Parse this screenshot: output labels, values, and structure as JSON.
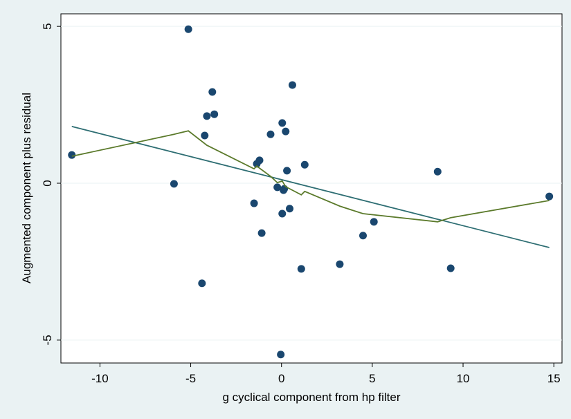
{
  "chart_data": {
    "type": "scatter",
    "x_label": "g cyclical component from hp filter",
    "y_label": "Augmented component plus residual",
    "xlim": [
      -12.15,
      15.45
    ],
    "ylim": [
      -5.73,
      5.4
    ],
    "xticks": [
      -10,
      -5,
      0,
      5,
      10,
      15
    ],
    "yticks": [
      -5,
      0,
      5
    ],
    "grid": true,
    "series": [
      {
        "mode": "markers",
        "color": "#1a476f",
        "x": [
          -11.55,
          -5.92,
          -5.13,
          -4.38,
          -4.23,
          -4.11,
          -3.81,
          -3.7,
          -1.51,
          -1.36,
          -1.21,
          -1.09,
          -0.6,
          -0.23,
          -0.04,
          0.04,
          0.04,
          0.11,
          0.15,
          0.23,
          0.3,
          0.45,
          0.6,
          1.09,
          1.28,
          3.21,
          4.49,
          5.09,
          8.6,
          9.32,
          14.75
        ],
        "values": [
          0.9,
          -0.02,
          4.91,
          -3.19,
          1.52,
          2.14,
          2.91,
          2.2,
          -0.64,
          0.62,
          0.73,
          -1.59,
          1.56,
          -0.13,
          -5.46,
          1.92,
          -0.97,
          -0.22,
          -0.18,
          1.65,
          0.4,
          -0.81,
          3.13,
          -2.73,
          0.59,
          -2.58,
          -1.67,
          -1.23,
          0.37,
          -2.71,
          -0.42
        ]
      },
      {
        "mode": "line",
        "color": "#2e6e73",
        "x": [
          -11.55,
          14.75
        ],
        "values": [
          1.81,
          -2.05
        ]
      },
      {
        "mode": "line",
        "color": "#5b7a2b",
        "x": [
          -11.55,
          -5.92,
          -5.13,
          -4.11,
          -1.51,
          -1.36,
          -1.21,
          -0.6,
          -0.23,
          0.04,
          0.23,
          1.09,
          1.28,
          3.21,
          4.49,
          8.6,
          9.32,
          14.75
        ],
        "values": [
          0.86,
          1.56,
          1.67,
          1.21,
          0.46,
          0.55,
          0.48,
          0.22,
          0.02,
          0.07,
          -0.11,
          -0.37,
          -0.26,
          -0.73,
          -0.97,
          -1.23,
          -1.1,
          -0.55
        ]
      }
    ]
  }
}
